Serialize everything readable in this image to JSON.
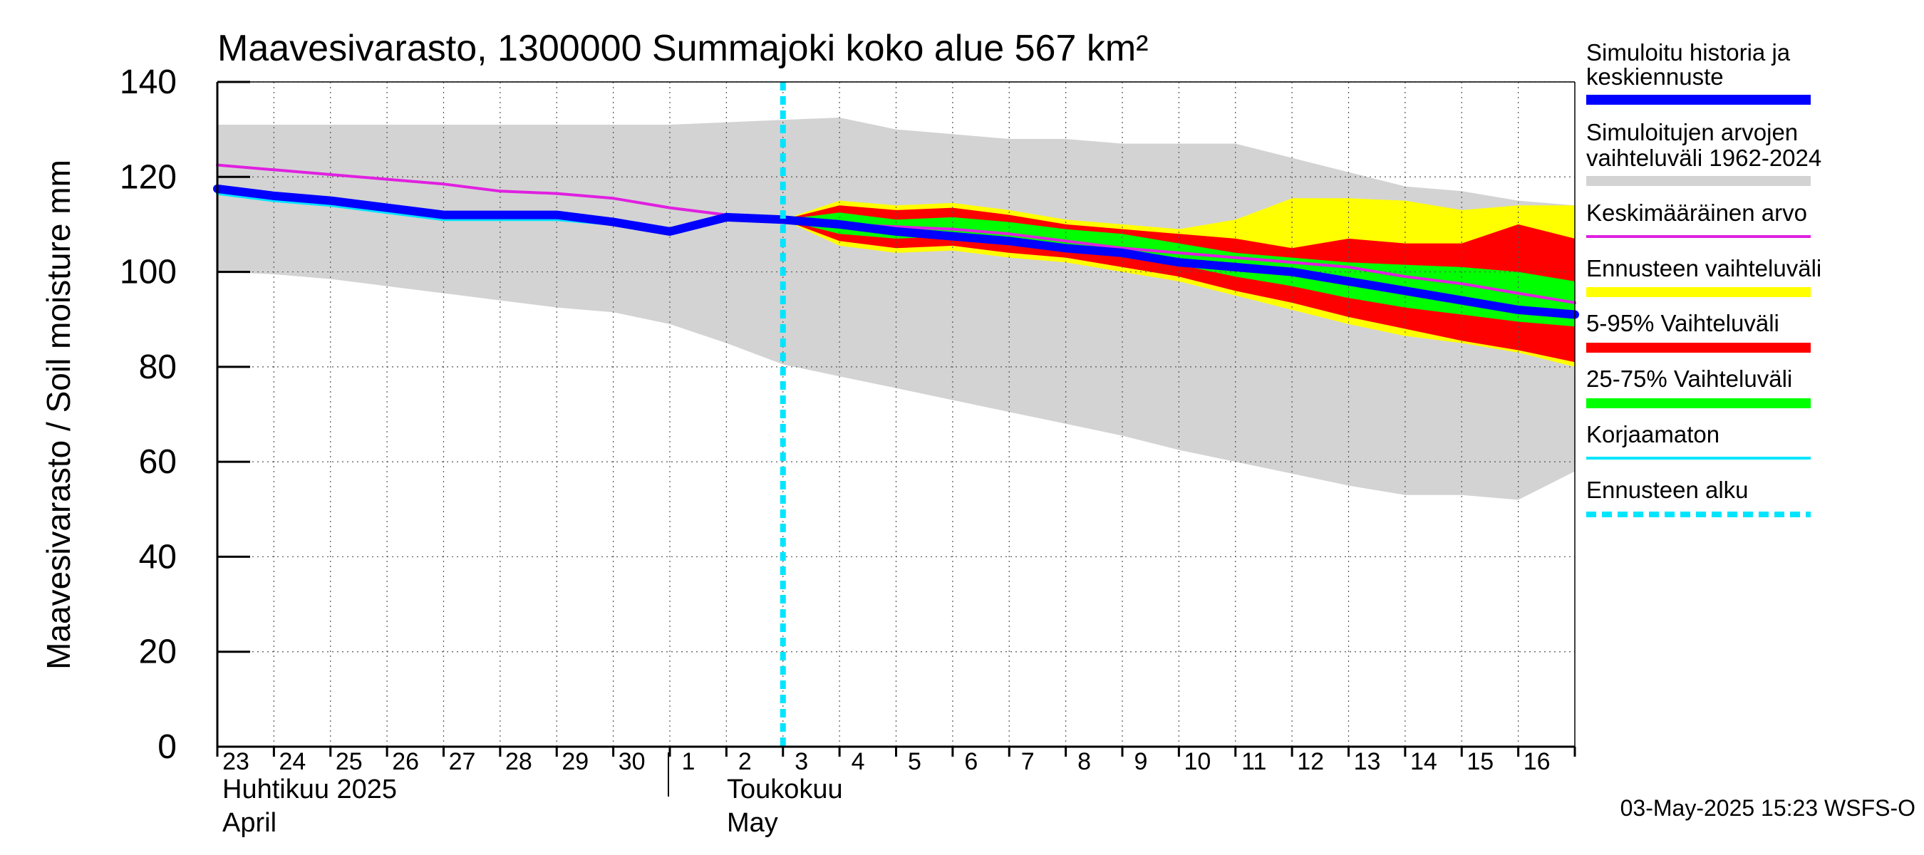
{
  "chart_data": {
    "type": "area",
    "title": "Maavesivarasto, 1300000 Summajoki koko alue 567 km²",
    "ylabel": "Maavesivarasto / Soil moisture   mm",
    "ylim": [
      0,
      140
    ],
    "yticks": [
      0,
      20,
      40,
      60,
      80,
      100,
      120,
      140
    ],
    "x_day_labels": [
      "23",
      "24",
      "25",
      "26",
      "27",
      "28",
      "29",
      "30",
      "1",
      "2",
      "3",
      "4",
      "5",
      "6",
      "7",
      "8",
      "9",
      "10",
      "11",
      "12",
      "13",
      "14",
      "15",
      "16"
    ],
    "month_labels": [
      {
        "fi": "Huhtikuu  2025",
        "en": "April"
      },
      {
        "fi": "Toukokuu",
        "en": "May"
      }
    ],
    "forecast_start_index": 10,
    "timestamp": "03-May-2025 15:23 WSFS-O",
    "x": [
      0,
      1,
      2,
      3,
      4,
      5,
      6,
      7,
      8,
      9,
      10,
      11,
      12,
      13,
      14,
      15,
      16,
      17,
      18,
      19,
      20,
      21,
      22,
      23,
      24
    ],
    "series": [
      {
        "name": "hist_range_upper",
        "color": "#d3d3d3",
        "values": [
          131,
          131,
          131,
          131,
          131,
          131,
          131,
          131,
          131,
          131.5,
          132,
          132.5,
          130,
          129,
          128,
          128,
          127,
          127,
          127,
          124,
          121,
          118,
          117,
          115,
          114
        ]
      },
      {
        "name": "hist_range_lower",
        "color": "#d3d3d3",
        "values": [
          100,
          99.5,
          98.5,
          97,
          95.5,
          94,
          92.5,
          91.5,
          89,
          85,
          80.5,
          78,
          75.5,
          73,
          70.5,
          68,
          65.5,
          62.5,
          60,
          57.5,
          55,
          53,
          53,
          52,
          58
        ]
      },
      {
        "name": "fc_range_upper",
        "color": "#ffff00",
        "values": [
          null,
          null,
          null,
          null,
          null,
          null,
          null,
          null,
          null,
          null,
          111,
          115,
          114,
          114.5,
          113,
          111,
          110,
          109,
          111,
          115.5,
          115.5,
          115,
          113,
          114,
          114
        ]
      },
      {
        "name": "fc_range_lower",
        "color": "#ffff00",
        "values": [
          null,
          null,
          null,
          null,
          null,
          null,
          null,
          null,
          null,
          null,
          111,
          105.5,
          104,
          104.5,
          103,
          102,
          100,
          98,
          95,
          92,
          89,
          86.5,
          85,
          83,
          80
        ]
      },
      {
        "name": "p95",
        "color": "#ff0000",
        "values": [
          null,
          null,
          null,
          null,
          null,
          null,
          null,
          null,
          null,
          null,
          111,
          114,
          113,
          113.5,
          112,
          110,
          109,
          108,
          107,
          105,
          107,
          106,
          106,
          110,
          107
        ]
      },
      {
        "name": "p5",
        "color": "#ff0000",
        "values": [
          null,
          null,
          null,
          null,
          null,
          null,
          null,
          null,
          null,
          null,
          111,
          106.5,
          105,
          105.5,
          104,
          103,
          101,
          99,
          96,
          93.5,
          90.5,
          88,
          85.5,
          83.5,
          81
        ]
      },
      {
        "name": "p75",
        "color": "#00ff00",
        "values": [
          null,
          null,
          null,
          null,
          null,
          null,
          null,
          null,
          null,
          null,
          111,
          112.5,
          111,
          111.5,
          110.5,
          109,
          108,
          106,
          104,
          103,
          102,
          101.5,
          101,
          100,
          98
        ]
      },
      {
        "name": "p25",
        "color": "#00ff00",
        "values": [
          null,
          null,
          null,
          null,
          null,
          null,
          null,
          null,
          null,
          null,
          111,
          108,
          107,
          107.5,
          106,
          105,
          103.5,
          101.5,
          99,
          97,
          94.5,
          92.5,
          91,
          89.5,
          88.5
        ]
      },
      {
        "name": "Simuloitu historia ja keskiennuste",
        "color": "#0000ff",
        "values": [
          117.5,
          116,
          115,
          113.5,
          112,
          112,
          112,
          110.5,
          108.5,
          111.5,
          111,
          110,
          108.5,
          107.5,
          106.5,
          105,
          104,
          102,
          101,
          100,
          98,
          96,
          94,
          92,
          91
        ]
      },
      {
        "name": "Keskimääräinen arvo",
        "color": "#e020e0",
        "values": [
          122.5,
          121.5,
          120.5,
          119.5,
          118.5,
          117,
          116.5,
          115.5,
          113.5,
          112,
          111,
          110,
          109.5,
          109,
          108,
          106.5,
          105,
          104,
          103,
          102,
          101,
          99,
          97.5,
          95.5,
          93.5
        ]
      },
      {
        "name": "Korjaamaton",
        "color": "#00e5ff",
        "values": [
          116.5,
          115,
          114,
          112.5,
          111,
          111,
          111,
          110,
          108,
          null,
          null,
          null,
          null,
          null,
          null,
          null,
          null,
          null,
          null,
          null,
          null,
          null,
          null,
          null,
          null
        ]
      }
    ],
    "legend": [
      {
        "label": "Simuloitu historia ja keskiennuste",
        "color": "#0000ff",
        "style": "thick"
      },
      {
        "label": "Simuloitujen arvojen vaihteluväli 1962-2024",
        "color": "#d3d3d3",
        "style": "thick"
      },
      {
        "label": "Keskimääräinen arvo",
        "color": "#e020e0",
        "style": "thin"
      },
      {
        "label": "Ennusteen vaihteluväli",
        "color": "#ffff00",
        "style": "thick"
      },
      {
        "label": "5-95% Vaihteluväli",
        "color": "#ff0000",
        "style": "thick"
      },
      {
        "label": "25-75% Vaihteluväli",
        "color": "#00ff00",
        "style": "thick"
      },
      {
        "label": "Korjaamaton",
        "color": "#00e5ff",
        "style": "thin"
      },
      {
        "label": "Ennusteen alku",
        "color": "#00e5ff",
        "style": "dashed"
      }
    ]
  }
}
